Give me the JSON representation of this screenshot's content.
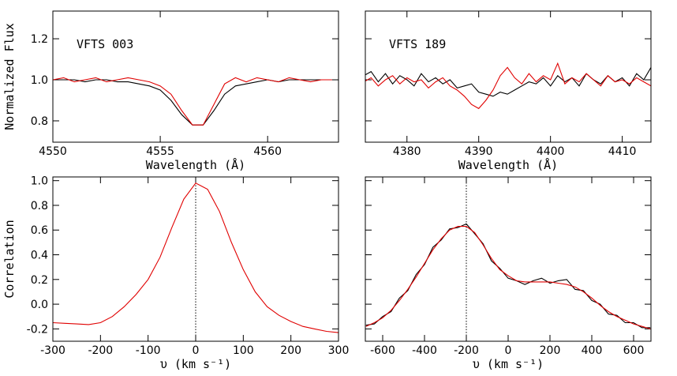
{
  "chart_data": [
    {
      "type": "line",
      "annotation": "VFTS 003",
      "xlabel": "Wavelength (Å)",
      "ylabel": "Normalized Flux",
      "x": [
        4550,
        4550.5,
        4551,
        4551.5,
        4552,
        4552.5,
        4553,
        4553.5,
        4554,
        4554.5,
        4555,
        4555.5,
        4556,
        4556.5,
        4557,
        4557.5,
        4558,
        4558.5,
        4559,
        4559.5,
        4560,
        4560.5,
        4561,
        4561.5,
        4562,
        4562.5,
        4563
      ],
      "series": [
        {
          "color": "#000000",
          "values": [
            1.0,
            1.0,
            1.0,
            0.99,
            1.0,
            1.0,
            0.99,
            0.99,
            0.98,
            0.97,
            0.95,
            0.9,
            0.83,
            0.78,
            0.78,
            0.85,
            0.93,
            0.97,
            0.98,
            0.99,
            1.0,
            0.99,
            1.0,
            1.0,
            1.0,
            1.0,
            1.0
          ]
        },
        {
          "color": "#e00000",
          "values": [
            1.0,
            1.01,
            0.99,
            1.0,
            1.01,
            0.99,
            1.0,
            1.01,
            1.0,
            0.99,
            0.97,
            0.93,
            0.85,
            0.78,
            0.78,
            0.88,
            0.98,
            1.01,
            0.99,
            1.01,
            1.0,
            0.99,
            1.01,
            1.0,
            0.99,
            1.0,
            1.0
          ]
        }
      ],
      "xlim": [
        4550,
        4563.3
      ],
      "ylim": [
        0.696,
        1.335
      ],
      "xticks": [
        4550,
        4555,
        4560
      ],
      "yticks": [
        0.8,
        {
          "value": 1,
          "label": "1.0"
        },
        1.2
      ],
      "show_ytick_labels": true
    },
    {
      "type": "line",
      "annotation": "VFTS 189",
      "xlabel": "Wavelength (Å)",
      "x": [
        4374,
        4375,
        4376,
        4377,
        4378,
        4379,
        4380,
        4381,
        4382,
        4383,
        4384,
        4385,
        4386,
        4387,
        4388,
        4389,
        4390,
        4391,
        4392,
        4393,
        4394,
        4395,
        4396,
        4397,
        4398,
        4399,
        4400,
        4401,
        4402,
        4403,
        4404,
        4405,
        4406,
        4407,
        4408,
        4409,
        4410,
        4411,
        4412,
        4413,
        4414
      ],
      "series": [
        {
          "color": "#000000",
          "values": [
            1.02,
            1.04,
            0.99,
            1.03,
            0.98,
            1.02,
            1.0,
            0.97,
            1.03,
            0.99,
            1.01,
            0.98,
            1.0,
            0.96,
            0.97,
            0.98,
            0.94,
            0.93,
            0.92,
            0.94,
            0.93,
            0.95,
            0.97,
            0.99,
            0.98,
            1.01,
            0.97,
            1.02,
            0.99,
            1.01,
            0.97,
            1.03,
            1.0,
            0.98,
            1.02,
            0.99,
            1.01,
            0.97,
            1.03,
            1.0,
            1.06
          ]
        },
        {
          "color": "#e00000",
          "values": [
            0.99,
            1.01,
            0.97,
            1.0,
            1.02,
            0.98,
            1.01,
            0.99,
            1.0,
            0.96,
            0.99,
            1.01,
            0.97,
            0.95,
            0.92,
            0.88,
            0.86,
            0.9,
            0.95,
            1.02,
            1.06,
            1.01,
            0.98,
            1.03,
            0.99,
            1.02,
            1.0,
            1.08,
            0.98,
            1.01,
            0.99,
            1.03,
            1.0,
            0.97,
            1.02,
            0.99,
            1.0,
            0.98,
            1.01,
            0.99,
            0.97
          ]
        }
      ],
      "xlim": [
        4374.2,
        4414
      ],
      "ylim": [
        0.696,
        1.335
      ],
      "xticks": [
        4380,
        4390,
        4400,
        4410
      ],
      "yticks": [
        0.8,
        1,
        1.2
      ],
      "show_ytick_labels": false
    },
    {
      "type": "line",
      "xlabel": "υ (km s⁻¹)",
      "ylabel": "Correlation",
      "vline": 0,
      "x": [
        -300,
        -275,
        -250,
        -225,
        -200,
        -175,
        -150,
        -125,
        -100,
        -75,
        -50,
        -25,
        0,
        25,
        50,
        75,
        100,
        125,
        150,
        175,
        200,
        225,
        250,
        275,
        300
      ],
      "series": [
        {
          "color": "#e00000",
          "values": [
            -0.15,
            -0.155,
            -0.16,
            -0.165,
            -0.15,
            -0.1,
            -0.02,
            0.08,
            0.2,
            0.38,
            0.62,
            0.85,
            0.98,
            0.93,
            0.75,
            0.5,
            0.28,
            0.1,
            -0.02,
            -0.09,
            -0.14,
            -0.18,
            -0.2,
            -0.22,
            -0.23
          ]
        }
      ],
      "xlim": [
        -300,
        300
      ],
      "ylim": [
        -0.3,
        1.03
      ],
      "xticks": [
        -300,
        -200,
        -100,
        0,
        100,
        200,
        300
      ],
      "yticks": [
        -0.2,
        {
          "value": 0,
          "label": "0.0"
        },
        0.2,
        0.4,
        0.6,
        0.8,
        {
          "value": 1,
          "label": "1.0"
        }
      ],
      "show_ytick_labels": true
    },
    {
      "type": "line",
      "xlabel": "υ (km s⁻¹)",
      "vline": -200,
      "x": [
        -680,
        -640,
        -600,
        -560,
        -520,
        -480,
        -440,
        -400,
        -360,
        -320,
        -280,
        -240,
        -200,
        -160,
        -120,
        -80,
        -40,
        0,
        40,
        80,
        120,
        160,
        200,
        240,
        280,
        320,
        360,
        400,
        440,
        480,
        520,
        560,
        600,
        640,
        680
      ],
      "series": [
        {
          "color": "#000000",
          "values": [
            -0.17,
            -0.16,
            -0.1,
            -0.06,
            0.05,
            0.11,
            0.24,
            0.32,
            0.46,
            0.52,
            0.61,
            0.62,
            0.65,
            0.57,
            0.49,
            0.35,
            0.29,
            0.21,
            0.19,
            0.16,
            0.19,
            0.21,
            0.17,
            0.19,
            0.2,
            0.12,
            0.11,
            0.03,
            0.0,
            -0.08,
            -0.09,
            -0.15,
            -0.15,
            -0.19,
            -0.19
          ]
        },
        {
          "color": "#e00000",
          "values": [
            -0.18,
            -0.15,
            -0.11,
            -0.05,
            0.03,
            0.12,
            0.22,
            0.33,
            0.44,
            0.53,
            0.6,
            0.63,
            0.63,
            0.58,
            0.48,
            0.37,
            0.28,
            0.23,
            0.19,
            0.18,
            0.18,
            0.18,
            0.18,
            0.17,
            0.16,
            0.14,
            0.1,
            0.05,
            -0.01,
            -0.06,
            -0.1,
            -0.13,
            -0.16,
            -0.18,
            -0.2
          ]
        }
      ],
      "xlim": [
        -683,
        683
      ],
      "ylim": [
        -0.3,
        1.03
      ],
      "xticks": [
        -600,
        -400,
        -200,
        0,
        200,
        400,
        600
      ],
      "yticks": [
        -0.2,
        0,
        0.2,
        0.4,
        0.6,
        0.8,
        1
      ],
      "show_ytick_labels": false
    }
  ]
}
